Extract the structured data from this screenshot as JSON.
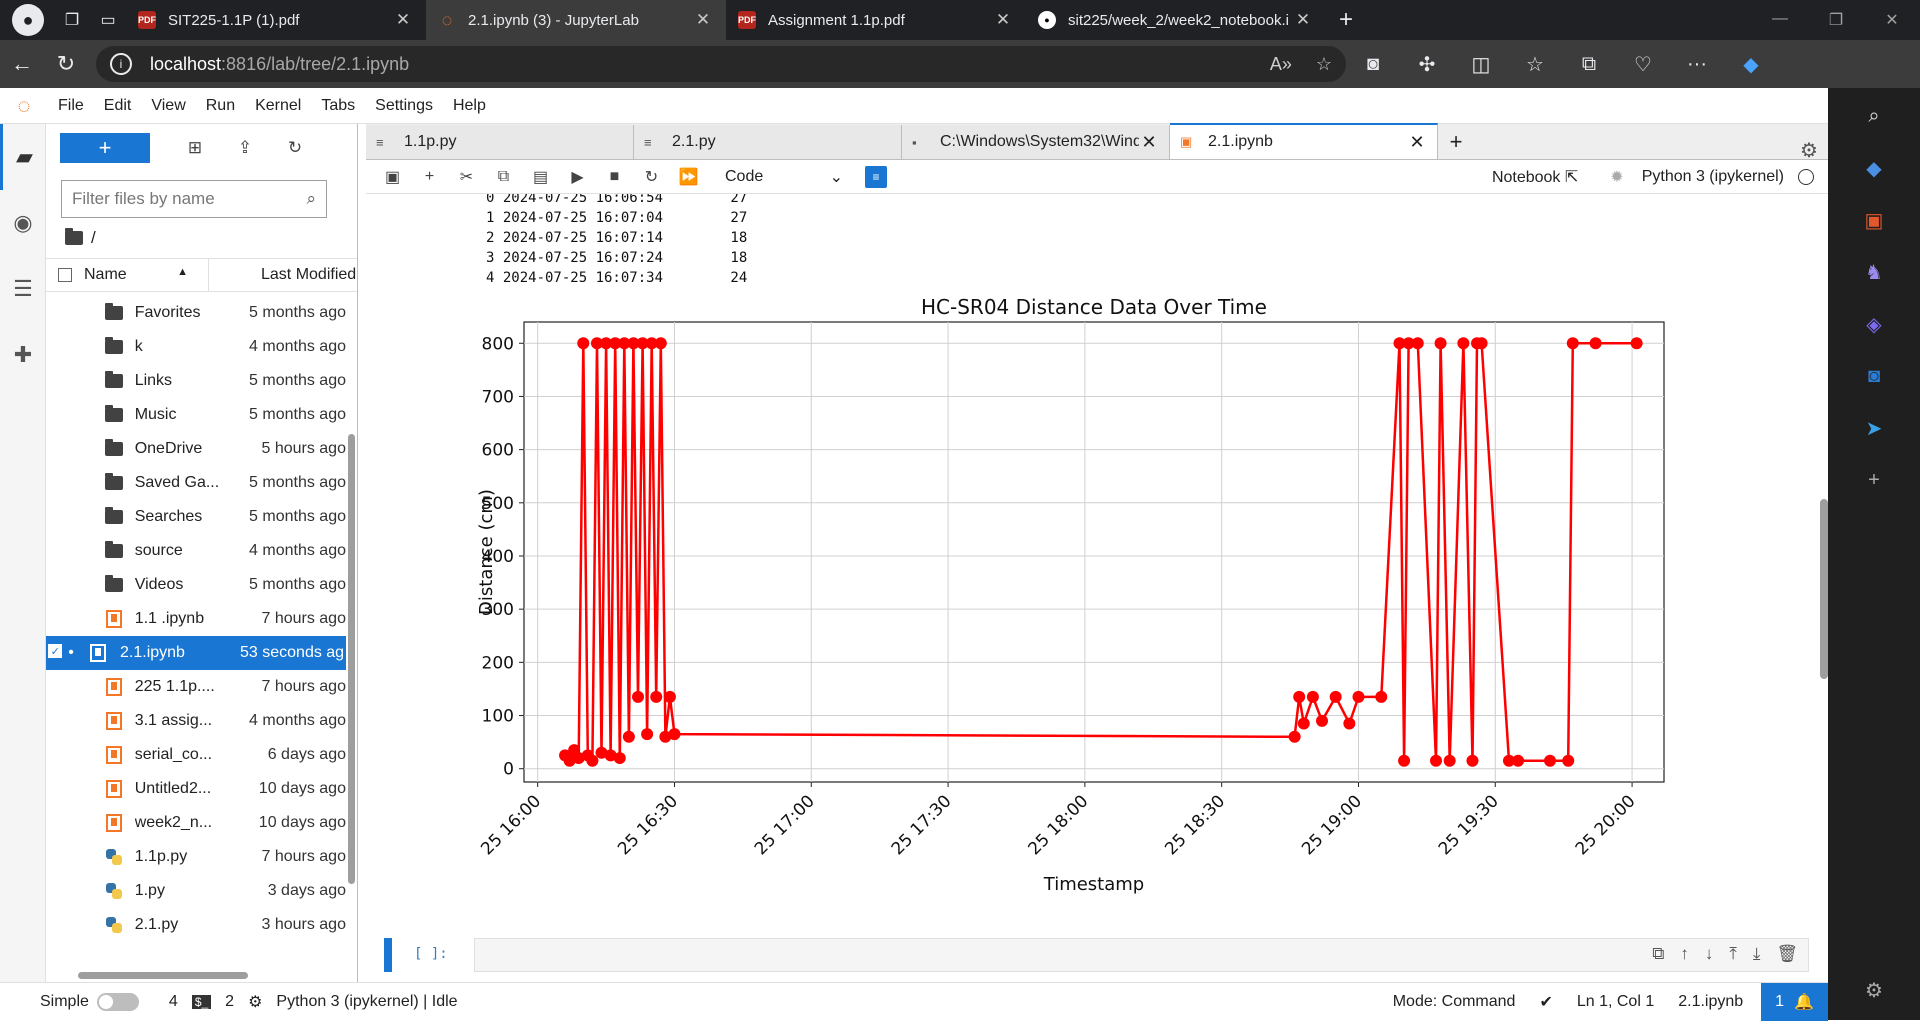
{
  "browser": {
    "tabs": [
      {
        "label": "SIT225-1.1P (1).pdf",
        "icon": "pdf-icon",
        "active": false
      },
      {
        "label": "2.1.ipynb (3) - JupyterLab",
        "icon": "jupyter-icon",
        "active": true
      },
      {
        "label": "Assignment 1.1p.pdf",
        "icon": "pdf-icon",
        "active": false
      },
      {
        "label": "sit225/week_2/week2_notebook.i",
        "icon": "github-icon",
        "active": false
      }
    ],
    "url_host": "localhost",
    "url_path": ":8816/lab/tree/2.1.ipynb"
  },
  "menu": [
    "File",
    "Edit",
    "View",
    "Run",
    "Kernel",
    "Tabs",
    "Settings",
    "Help"
  ],
  "filebrowser": {
    "filter_placeholder": "Filter files by name",
    "breadcrumb": "/",
    "col_name": "Name",
    "col_modified": "Last Modified",
    "files": [
      {
        "name": "Favorites",
        "modified": "5 months ago",
        "type": "folder"
      },
      {
        "name": "k",
        "modified": "4 months ago",
        "type": "folder"
      },
      {
        "name": "Links",
        "modified": "5 months ago",
        "type": "folder"
      },
      {
        "name": "Music",
        "modified": "5 months ago",
        "type": "folder"
      },
      {
        "name": "OneDrive",
        "modified": "5 hours ago",
        "type": "folder"
      },
      {
        "name": "Saved Ga...",
        "modified": "5 months ago",
        "type": "folder"
      },
      {
        "name": "Searches",
        "modified": "5 months ago",
        "type": "folder"
      },
      {
        "name": "source",
        "modified": "4 months ago",
        "type": "folder"
      },
      {
        "name": "Videos",
        "modified": "5 months ago",
        "type": "folder"
      },
      {
        "name": "1.1 .ipynb",
        "modified": "7 hours ago",
        "type": "notebook"
      },
      {
        "name": "2.1.ipynb",
        "modified": "53 seconds ago",
        "type": "notebook",
        "selected": true
      },
      {
        "name": "225 1.1p....",
        "modified": "7 hours ago",
        "type": "notebook"
      },
      {
        "name": "3.1 assig...",
        "modified": "4 months ago",
        "type": "notebook"
      },
      {
        "name": "serial_co...",
        "modified": "6 days ago",
        "type": "notebook"
      },
      {
        "name": "Untitled2...",
        "modified": "10 days ago",
        "type": "notebook"
      },
      {
        "name": "week2_n...",
        "modified": "10 days ago",
        "type": "notebook"
      },
      {
        "name": "1.1p.py",
        "modified": "7 hours ago",
        "type": "python"
      },
      {
        "name": "1.py",
        "modified": "3 days ago",
        "type": "python"
      },
      {
        "name": "2.1.py",
        "modified": "3 hours ago",
        "type": "python"
      }
    ]
  },
  "doctabs": [
    {
      "label": "1.1p.py",
      "icon": "text-file-icon"
    },
    {
      "label": "2.1.py",
      "icon": "text-file-icon"
    },
    {
      "label": "C:\\Windows\\System32\\Wind",
      "icon": "terminal-icon"
    },
    {
      "label": "2.1.ipynb",
      "icon": "notebook-icon",
      "active": true
    }
  ],
  "notebook": {
    "cell_type": "Code",
    "notebook_label": "Notebook",
    "kernel": "Python 3 (ipykernel)",
    "dataframe_lines": [
      "0 2024-07-25 16:06:54        27",
      "1 2024-07-25 16:07:04        27",
      "2 2024-07-25 16:07:14        18",
      "3 2024-07-25 16:07:24        18",
      "4 2024-07-25 16:07:34        24"
    ],
    "empty_prompt": "[ ]:"
  },
  "chart_data": {
    "type": "line",
    "title": "HC-SR04 Distance Data Over Time",
    "xlabel": "Timestamp",
    "ylabel": "Distance (cm)",
    "xlim": [
      "2024-07-25 15:57",
      "2024-07-25 20:07"
    ],
    "ylim": [
      -25,
      840
    ],
    "grid": true,
    "line_color": "#ff0000",
    "x_ticks": [
      "25 16:00",
      "25 16:30",
      "25 17:00",
      "25 17:30",
      "25 18:00",
      "25 18:30",
      "25 19:00",
      "25 19:30",
      "25 20:00"
    ],
    "y_ticks": [
      0,
      100,
      200,
      300,
      400,
      500,
      600,
      700,
      800
    ],
    "series": [
      {
        "x": [
          "16:06",
          "16:07",
          "16:08",
          "16:09",
          "16:10",
          "16:11",
          "16:12",
          "16:13",
          "16:14",
          "16:15",
          "16:16",
          "16:17",
          "16:18",
          "16:19",
          "16:20",
          "16:21",
          "16:22",
          "16:23",
          "16:24",
          "16:25",
          "16:26",
          "16:27",
          "16:28",
          "16:29",
          "16:30",
          "18:46",
          "18:47",
          "18:48",
          "18:50",
          "18:52",
          "18:55",
          "18:58",
          "19:00",
          "19:05",
          "19:09",
          "19:10",
          "19:11",
          "19:13",
          "19:17",
          "19:18",
          "19:20",
          "19:23",
          "19:25",
          "19:26",
          "19:27",
          "19:33",
          "19:35",
          "19:42",
          "19:46",
          "19:47",
          "19:52",
          "20:01"
        ],
        "y": [
          25,
          15,
          35,
          20,
          800,
          25,
          15,
          800,
          30,
          800,
          25,
          800,
          20,
          800,
          60,
          800,
          135,
          800,
          65,
          800,
          135,
          800,
          60,
          135,
          65,
          60,
          135,
          85,
          135,
          90,
          135,
          85,
          135,
          135,
          800,
          15,
          800,
          800,
          15,
          800,
          15,
          800,
          15,
          800,
          800,
          15,
          15,
          15,
          15,
          800,
          800,
          800
        ]
      }
    ]
  },
  "statusbar": {
    "mode_label": "Simple",
    "terminals": "4",
    "kernels": "2",
    "kernel_status": "Python 3 (ipykernel) | Idle",
    "mode": "Mode: Command",
    "cursor": "Ln 1, Col 1",
    "filename": "2.1.ipynb",
    "notifications": "1"
  }
}
